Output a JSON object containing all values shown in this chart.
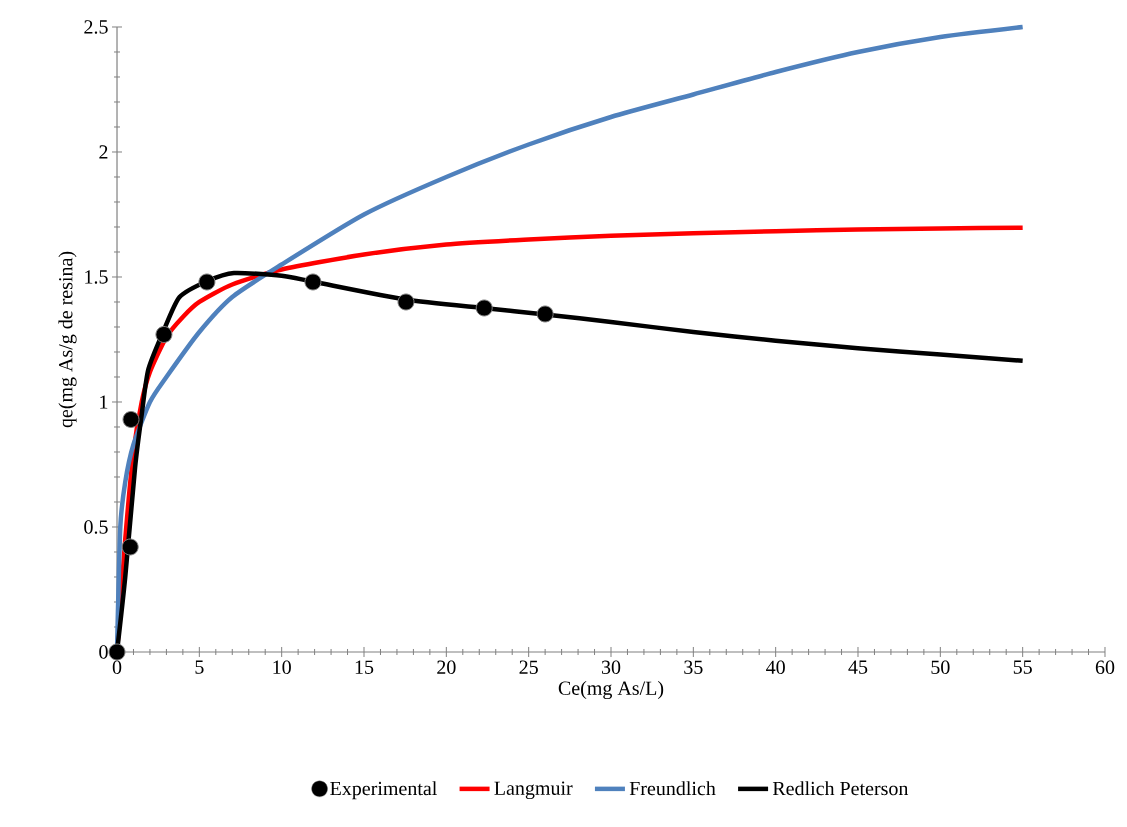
{
  "chart_data": {
    "type": "line",
    "xlabel": "Ce(mg As/L)",
    "ylabel": "qe(mg As/g de resina)",
    "xlim": [
      0,
      60
    ],
    "ylim": [
      0,
      2.5
    ],
    "xticks": [
      0,
      5,
      10,
      15,
      20,
      25,
      30,
      35,
      40,
      45,
      50,
      55,
      60
    ],
    "yticks": [
      0,
      0.5,
      1,
      1.5,
      2,
      2.5
    ],
    "grid": false,
    "legend": "bottom",
    "series": [
      {
        "name": "Experimental",
        "type": "scatter",
        "marker": "circle",
        "color": "#000000",
        "x": [
          0,
          0.8,
          0.85,
          2.85,
          5.46,
          11.9,
          17.55,
          22.3,
          26.0
        ],
        "values": [
          0,
          0.42,
          0.93,
          1.27,
          1.48,
          1.48,
          1.4,
          1.376,
          1.352
        ]
      },
      {
        "name": "Langmuir",
        "color": "#ff0000",
        "x": [
          0,
          0.5,
          1,
          1.5,
          2,
          3,
          4,
          5,
          7,
          10,
          15,
          20,
          25,
          30,
          35,
          40,
          45,
          50,
          55
        ],
        "values": [
          0,
          0.45,
          0.8,
          1.0,
          1.12,
          1.26,
          1.34,
          1.4,
          1.47,
          1.53,
          1.59,
          1.63,
          1.65,
          1.665,
          1.675,
          1.683,
          1.69,
          1.694,
          1.697
        ]
      },
      {
        "name": "Freundlich",
        "color": "#4f81bd",
        "x": [
          0,
          0.2,
          0.5,
          1,
          2,
          3,
          5,
          7,
          10,
          15,
          20,
          25,
          30,
          35,
          40,
          45,
          50,
          55
        ],
        "values": [
          0,
          0.5,
          0.68,
          0.83,
          1.0,
          1.1,
          1.28,
          1.42,
          1.55,
          1.75,
          1.9,
          2.03,
          2.14,
          2.23,
          2.32,
          2.4,
          2.46,
          2.5
        ]
      },
      {
        "name": "Redlich Peterson",
        "color": "#000000",
        "x": [
          0,
          0.5,
          1.1,
          1.5,
          1.9,
          2.8,
          3.8,
          5.5,
          7.1,
          10,
          12,
          17.5,
          22.4,
          26,
          30,
          35,
          40,
          45,
          50,
          55
        ],
        "values": [
          0,
          0.3,
          0.74,
          0.95,
          1.13,
          1.28,
          1.42,
          1.484,
          1.516,
          1.505,
          1.48,
          1.41,
          1.375,
          1.35,
          1.32,
          1.28,
          1.245,
          1.215,
          1.19,
          1.165
        ]
      }
    ]
  }
}
